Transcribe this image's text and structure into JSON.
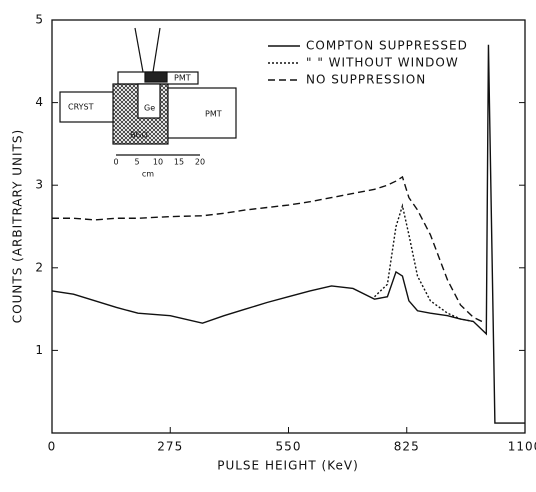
{
  "chart_data": {
    "type": "line",
    "xlabel": "PULSE HEIGHT (KeV)",
    "ylabel": "COUNTS (ARBITRARY UNITS)",
    "x": [
      0,
      50,
      100,
      150,
      200,
      275,
      350,
      400,
      450,
      500,
      550,
      600,
      650,
      700,
      750,
      780,
      800,
      815,
      830,
      850,
      880,
      920,
      950,
      980,
      1000,
      1010,
      1015,
      1030,
      1100
    ],
    "series": [
      {
        "name": "COMPTON SUPPRESSED",
        "color": "#111111",
        "style": "solid",
        "values": [
          1.72,
          1.68,
          1.6,
          1.52,
          1.45,
          1.42,
          1.33,
          1.42,
          1.5,
          1.58,
          1.65,
          1.72,
          1.78,
          1.75,
          1.62,
          1.65,
          1.95,
          1.9,
          1.6,
          1.48,
          1.45,
          1.42,
          1.38,
          1.35,
          1.25,
          1.2,
          4.7,
          0.12,
          0.12
        ]
      },
      {
        "name": "\" \" WITHOUT WINDOW",
        "color": "#111111",
        "style": "dotted",
        "values": [
          null,
          null,
          null,
          null,
          null,
          null,
          null,
          null,
          null,
          null,
          null,
          null,
          null,
          null,
          1.65,
          1.8,
          2.5,
          2.75,
          2.4,
          1.9,
          1.6,
          1.45,
          1.38,
          1.35,
          null,
          null,
          null,
          null,
          null
        ]
      },
      {
        "name": "NO SUPPRESSION",
        "color": "#111111",
        "style": "dashed",
        "values": [
          2.6,
          2.6,
          2.58,
          2.6,
          2.6,
          2.62,
          2.63,
          2.66,
          2.7,
          2.73,
          2.76,
          2.8,
          2.85,
          2.9,
          2.95,
          3.0,
          3.05,
          3.1,
          2.85,
          2.7,
          2.4,
          1.85,
          1.55,
          1.4,
          1.35,
          null,
          null,
          null,
          null
        ]
      }
    ],
    "xlim": [
      0,
      1100
    ],
    "xticks": [
      0,
      275,
      550,
      825,
      1100
    ],
    "ylim": [
      0,
      5
    ],
    "yticks": [
      1,
      2,
      3,
      4,
      5
    ],
    "legend": "top-right",
    "grid": false
  },
  "inset": {
    "labels": [
      "PMT",
      "CRYST",
      "Ge",
      "BGO",
      "PMT"
    ],
    "scale": [
      "0",
      "5",
      "10",
      "15",
      "20"
    ],
    "unit": "cm"
  }
}
